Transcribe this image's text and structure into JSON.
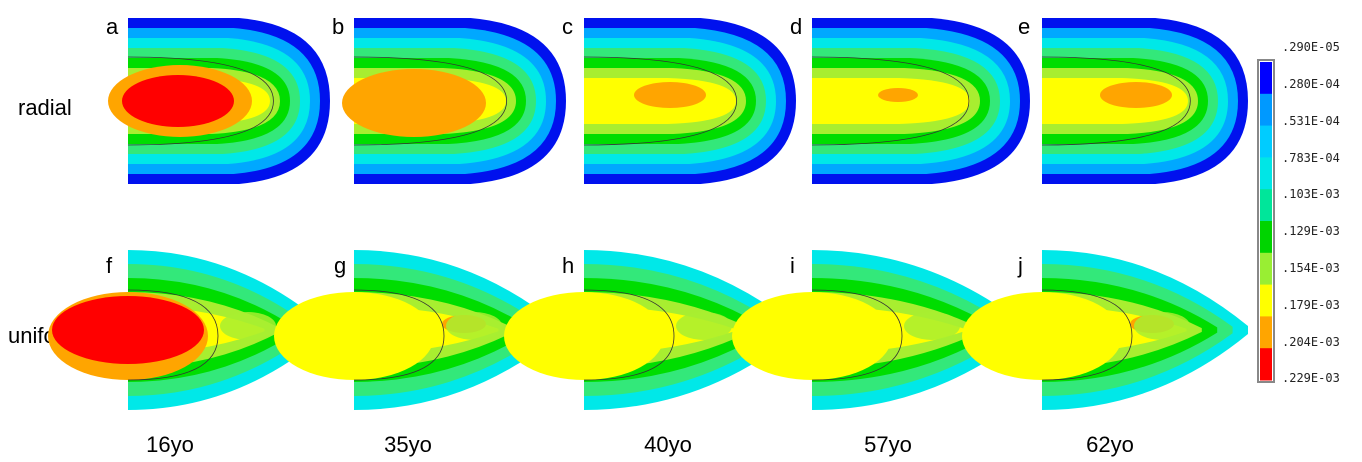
{
  "rows": [
    {
      "label": "radial"
    },
    {
      "label": "uniform"
    }
  ],
  "ages": [
    "16yo",
    "35yo",
    "40yo",
    "57yo",
    "62yo"
  ],
  "panels": [
    {
      "letter": "a",
      "row": 0,
      "col": 0,
      "core": "#ff0000",
      "inner": "#ffa500"
    },
    {
      "letter": "b",
      "row": 0,
      "col": 1,
      "core": "#ffa500",
      "inner": "#ffa500"
    },
    {
      "letter": "c",
      "row": 0,
      "col": 2,
      "core": "#ffa500",
      "inner": "#ffff00"
    },
    {
      "letter": "d",
      "row": 0,
      "col": 3,
      "core": "#ffa500",
      "inner": "#ffff00"
    },
    {
      "letter": "e",
      "row": 0,
      "col": 4,
      "core": "#ffa500",
      "inner": "#ffff00"
    },
    {
      "letter": "f",
      "row": 1,
      "col": 0,
      "core": "#ff0000",
      "inner": "#ffa500"
    },
    {
      "letter": "g",
      "row": 1,
      "col": 1,
      "core": "#ffa500",
      "inner": "#ffff00"
    },
    {
      "letter": "h",
      "row": 1,
      "col": 2,
      "core": "#ffff00",
      "inner": "#ffff00"
    },
    {
      "letter": "i",
      "row": 1,
      "col": 3,
      "core": "#00e000",
      "inner": "#ffff00"
    },
    {
      "letter": "j",
      "row": 1,
      "col": 4,
      "core": "#ffa500",
      "inner": "#ffff00"
    }
  ],
  "legend": {
    "labels": [
      ".290E-05",
      ".280E-04",
      ".531E-04",
      ".783E-04",
      ".103E-03",
      ".129E-03",
      ".154E-03",
      ".179E-03",
      ".204E-03",
      ".229E-03"
    ],
    "colors": [
      "#0000ff",
      "#0099ff",
      "#00ccff",
      "#00e6e6",
      "#00e69a",
      "#00d400",
      "#99ee33",
      "#ffff00",
      "#ffa500",
      "#ff0000"
    ]
  },
  "radial_colors": [
    "#0011ee",
    "#00a8ff",
    "#00e8e8",
    "#33e87a",
    "#00dd00",
    "#a8ee30",
    "#ffff00"
  ],
  "uniform_colors": [
    "#00e8e8",
    "#33e87a",
    "#00dd00",
    "#a8ee30",
    "#ffff00"
  ]
}
